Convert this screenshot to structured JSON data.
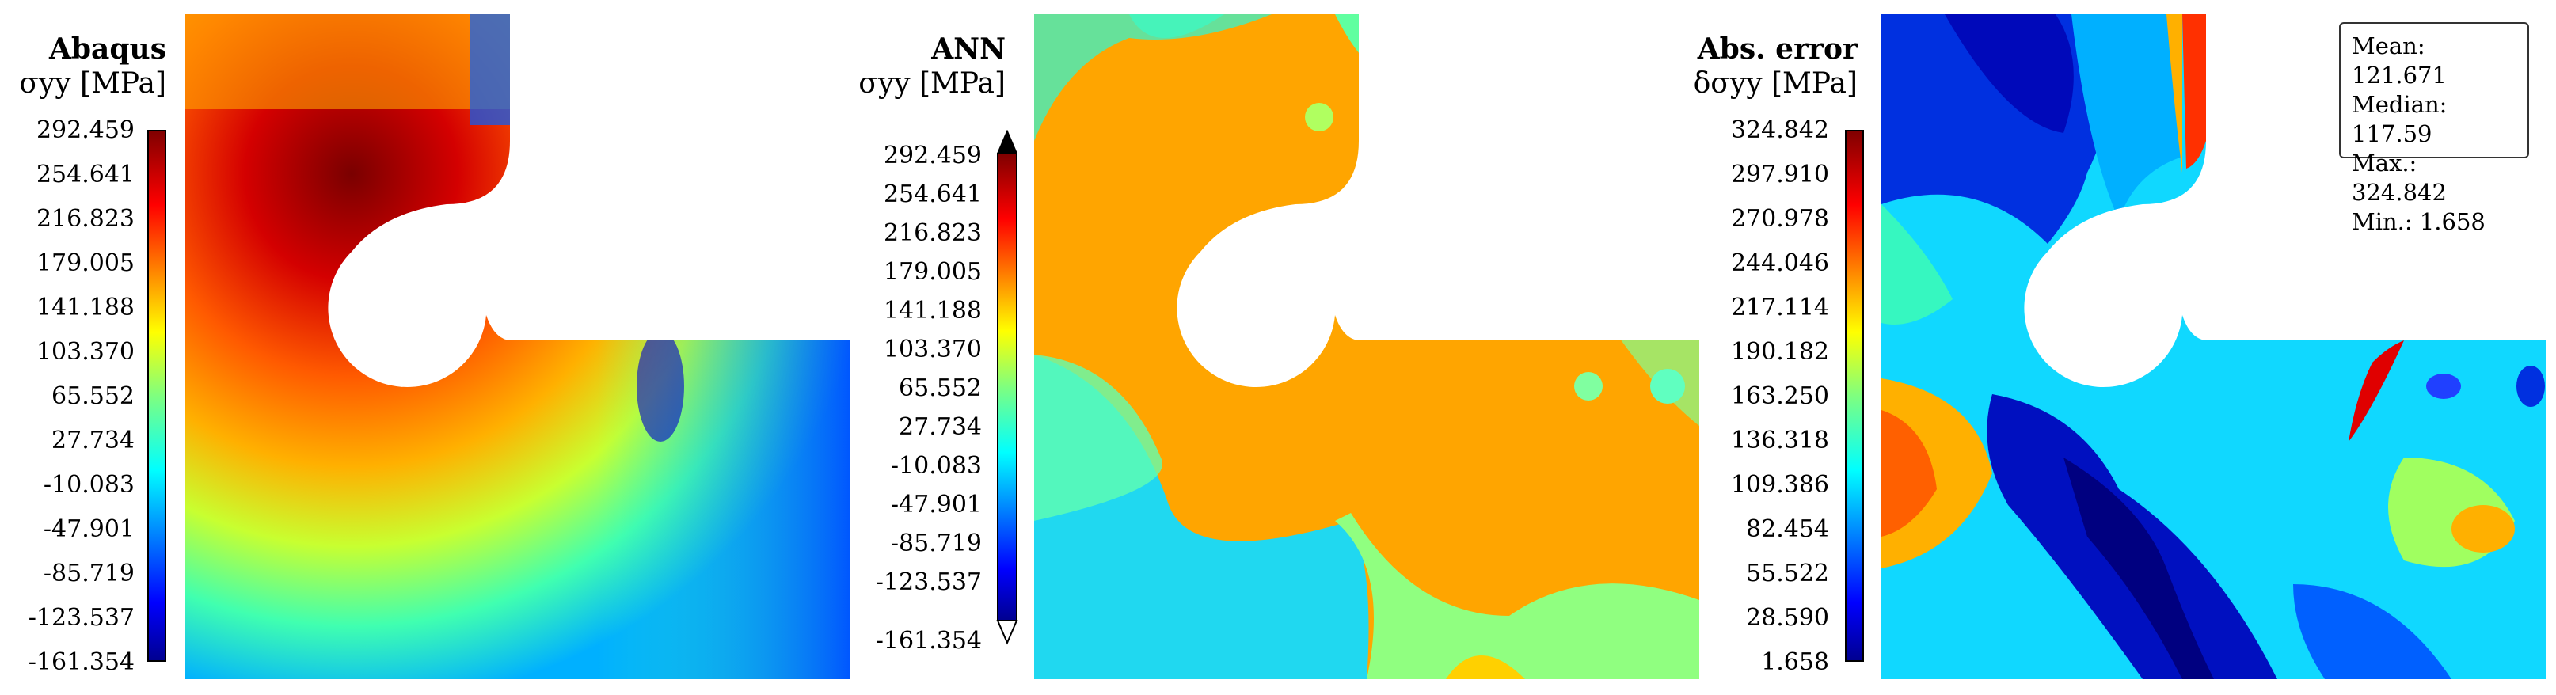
{
  "panels": [
    {
      "title": "Abaqus",
      "symbol": "σyy [MPa]",
      "colorbar_ticks": [
        "292.459",
        "254.641",
        "216.823",
        "179.005",
        "141.188",
        "103.370",
        "65.552",
        "27.734",
        "-10.083",
        "-47.901",
        "-85.719",
        "-123.537",
        "-161.354"
      ],
      "colorbar_style": "plain"
    },
    {
      "title": "ANN",
      "symbol": "σyy [MPa]",
      "colorbar_ticks": [
        "292.459",
        "254.641",
        "216.823",
        "179.005",
        "141.188",
        "103.370",
        "65.552",
        "27.734",
        "-10.083",
        "-47.901",
        "-85.719",
        "-123.537",
        "-161.354"
      ],
      "colorbar_style": "extended"
    },
    {
      "title": "Abs. error",
      "symbol": "δσyy [MPa]",
      "colorbar_ticks": [
        "324.842",
        "297.910",
        "270.978",
        "244.046",
        "217.114",
        "190.182",
        "163.250",
        "136.318",
        "109.386",
        "82.454",
        "55.522",
        "28.590",
        "1.658"
      ],
      "colorbar_style": "plain"
    }
  ],
  "stats": {
    "mean": "Mean: 121.671",
    "median": "Median: 117.59",
    "max": "Max.: 324.842",
    "min": "Min.: 1.658"
  },
  "colormap": "jet"
}
